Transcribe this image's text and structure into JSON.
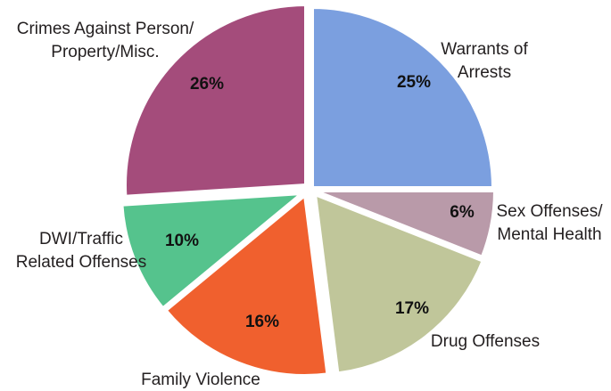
{
  "chart_data": {
    "type": "pie",
    "title": "",
    "slices": [
      {
        "label_lines": [
          "Warrants of",
          "Arrests"
        ],
        "value": 25,
        "value_label": "25%",
        "color": "#7b9fdf"
      },
      {
        "label_lines": [
          "Sex Offenses/",
          "Mental Health"
        ],
        "value": 6,
        "value_label": "6%",
        "color": "#b99aa9"
      },
      {
        "label_lines": [
          "Drug Offenses"
        ],
        "value": 17,
        "value_label": "17%",
        "color": "#c0c69a"
      },
      {
        "label_lines": [
          "Family Violence"
        ],
        "value": 16,
        "value_label": "16%",
        "color": "#f0602e"
      },
      {
        "label_lines": [
          "DWI/Traffic",
          "Related Offenses"
        ],
        "value": 10,
        "value_label": "10%",
        "color": "#55c38d"
      },
      {
        "label_lines": [
          "Crimes Against Person/",
          "Property/Misc."
        ],
        "value": 26,
        "value_label": "26%",
        "color": "#a44c7b"
      }
    ]
  }
}
